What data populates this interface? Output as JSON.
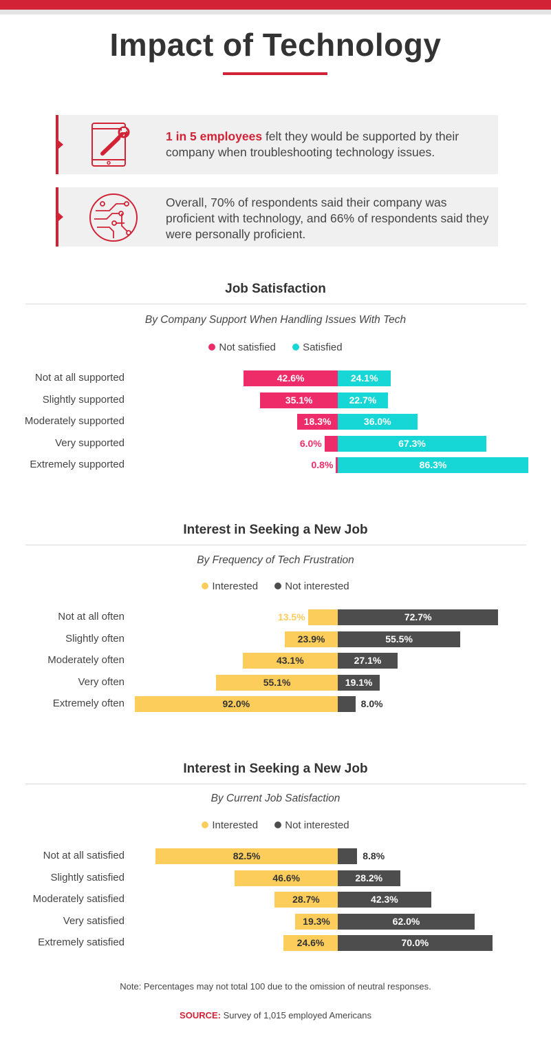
{
  "title": "Impact of Technology",
  "colors": {
    "accent": "#d12236",
    "pink": "#ef2c6a",
    "cyan": "#17d6d6",
    "yellow": "#fdcd5c",
    "dark": "#4d4d4d"
  },
  "stats": [
    {
      "icon": "tablet-wrench-icon",
      "highlight": "1 in 5 employees",
      "text": " felt they would be supported by their company when troubleshooting technology issues."
    },
    {
      "icon": "circuit-icon",
      "highlight": "",
      "text": "Overall, 70% of respondents said their company was proficient with technology, and 66% of respondents said they were personally proficient."
    }
  ],
  "chart_data": [
    {
      "type": "bar",
      "title": "Job Satisfaction",
      "subtitle": "By Company Support When Handling Issues With Tech",
      "categories": [
        "Not at all supported",
        "Slightly supported",
        "Moderately supported",
        "Very supported",
        "Extremely supported"
      ],
      "series": [
        {
          "name": "Not satisfied",
          "color": "#ef2c6a",
          "side": "left",
          "values": [
            42.6,
            35.1,
            18.3,
            6.0,
            0.8
          ]
        },
        {
          "name": "Satisfied",
          "color": "#17d6d6",
          "side": "right",
          "values": [
            24.1,
            22.7,
            36.0,
            67.3,
            86.3
          ]
        }
      ],
      "legend": "top-center"
    },
    {
      "type": "bar",
      "title": "Interest in Seeking a New Job",
      "subtitle": "By Frequency of Tech Frustration",
      "categories": [
        "Not at all often",
        "Slightly often",
        "Moderately often",
        "Very often",
        "Extremely often"
      ],
      "series": [
        {
          "name": "Interested",
          "color": "#fdcd5c",
          "side": "left",
          "values": [
            13.5,
            23.9,
            43.1,
            55.1,
            92.0
          ]
        },
        {
          "name": "Not interested",
          "color": "#4d4d4d",
          "side": "right",
          "values": [
            72.7,
            55.5,
            27.1,
            19.1,
            8.0
          ]
        }
      ],
      "legend": "top-center"
    },
    {
      "type": "bar",
      "title": "Interest in Seeking a New Job",
      "subtitle": "By Current Job Satisfaction",
      "categories": [
        "Not at all satisfied",
        "Slightly satisfied",
        "Moderately satisfied",
        "Very satisfied",
        "Extremely satisfied"
      ],
      "series": [
        {
          "name": "Interested",
          "color": "#fdcd5c",
          "side": "left",
          "values": [
            82.5,
            46.6,
            28.7,
            19.3,
            24.6
          ]
        },
        {
          "name": "Not interested",
          "color": "#4d4d4d",
          "side": "right",
          "values": [
            8.8,
            28.2,
            42.3,
            62.0,
            70.0
          ]
        }
      ],
      "legend": "top-center"
    }
  ],
  "note": "Note: Percentages may not total 100 due to the omission of neutral responses.",
  "source": {
    "label": "SOURCE:",
    "text": " Survey of 1,015 employed Americans"
  }
}
